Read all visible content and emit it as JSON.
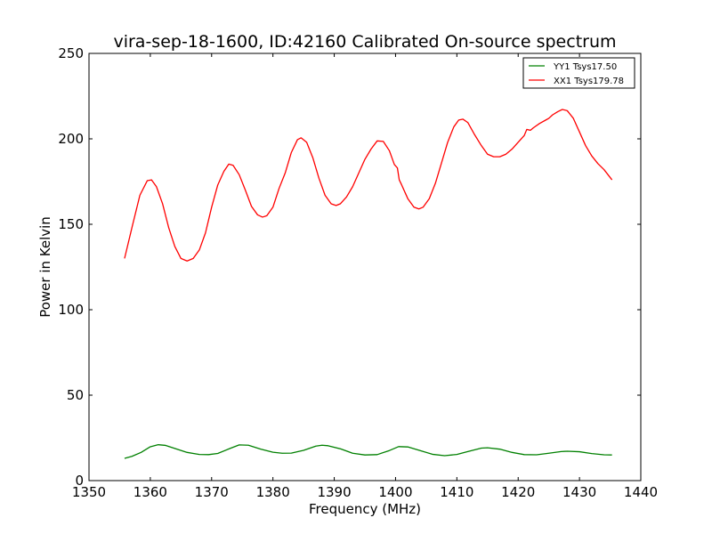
{
  "chart_data": {
    "type": "line",
    "title": "vira-sep-18-1600, ID:42160 Calibrated On-source spectrum",
    "xlabel": "Frequency (MHz)",
    "ylabel": "Power in Kelvin",
    "xlim": [
      1350,
      1440
    ],
    "ylim": [
      0,
      250
    ],
    "xticks": [
      1350,
      1360,
      1370,
      1380,
      1390,
      1400,
      1410,
      1420,
      1430,
      1440
    ],
    "yticks": [
      0,
      50,
      100,
      150,
      200,
      250
    ],
    "grid": false,
    "legend_position": "top-right",
    "series": [
      {
        "name": "YY1 Tsys17.50",
        "color": "#008000",
        "points": [
          [
            1355.8,
            13.0
          ],
          [
            1357,
            14.2
          ],
          [
            1358.5,
            16.5
          ],
          [
            1360,
            19.8
          ],
          [
            1361.3,
            21.0
          ],
          [
            1362.5,
            20.6
          ],
          [
            1364,
            18.8
          ],
          [
            1366,
            16.5
          ],
          [
            1368,
            15.3
          ],
          [
            1369.5,
            15.2
          ],
          [
            1371,
            15.9
          ],
          [
            1373,
            18.8
          ],
          [
            1374.5,
            20.9
          ],
          [
            1376,
            20.7
          ],
          [
            1378,
            18.4
          ],
          [
            1380,
            16.6
          ],
          [
            1381.5,
            16.0
          ],
          [
            1383,
            16.1
          ],
          [
            1385,
            17.7
          ],
          [
            1387,
            20.2
          ],
          [
            1388,
            20.7
          ],
          [
            1389,
            20.4
          ],
          [
            1391,
            18.6
          ],
          [
            1393,
            16.0
          ],
          [
            1395,
            15.0
          ],
          [
            1397,
            15.2
          ],
          [
            1399,
            17.6
          ],
          [
            1400.5,
            19.9
          ],
          [
            1402,
            19.7
          ],
          [
            1404,
            17.6
          ],
          [
            1406,
            15.4
          ],
          [
            1408,
            14.6
          ],
          [
            1410,
            15.3
          ],
          [
            1412,
            17.2
          ],
          [
            1414,
            19.0
          ],
          [
            1415,
            19.2
          ],
          [
            1417,
            18.4
          ],
          [
            1419,
            16.5
          ],
          [
            1421,
            15.2
          ],
          [
            1423,
            15.1
          ],
          [
            1425,
            16.0
          ],
          [
            1427,
            17.0
          ],
          [
            1428,
            17.2
          ],
          [
            1430,
            16.9
          ],
          [
            1432,
            15.8
          ],
          [
            1434,
            15.1
          ],
          [
            1435.3,
            15.0
          ]
        ]
      },
      {
        "name": "XX1 Tsys179.78",
        "color": "#ff0000",
        "points": [
          [
            1355.8,
            130
          ],
          [
            1357,
            148
          ],
          [
            1358.3,
            167
          ],
          [
            1359.5,
            175.5
          ],
          [
            1360.2,
            176
          ],
          [
            1361,
            172
          ],
          [
            1362,
            162
          ],
          [
            1363,
            148
          ],
          [
            1364,
            137
          ],
          [
            1365,
            130
          ],
          [
            1366,
            128.5
          ],
          [
            1367,
            130
          ],
          [
            1368,
            135
          ],
          [
            1369,
            145
          ],
          [
            1370,
            160
          ],
          [
            1371,
            173
          ],
          [
            1372,
            181
          ],
          [
            1372.8,
            185.2
          ],
          [
            1373.5,
            184.5
          ],
          [
            1374.5,
            179
          ],
          [
            1375.5,
            170
          ],
          [
            1376.5,
            160.5
          ],
          [
            1377.5,
            155.5
          ],
          [
            1378.3,
            154.2
          ],
          [
            1379,
            155
          ],
          [
            1380,
            160
          ],
          [
            1381,
            171
          ],
          [
            1382,
            180
          ],
          [
            1383,
            192
          ],
          [
            1384,
            199.5
          ],
          [
            1384.6,
            200.6
          ],
          [
            1385.5,
            198
          ],
          [
            1386.5,
            189
          ],
          [
            1387.5,
            177
          ],
          [
            1388.5,
            167
          ],
          [
            1389.5,
            162
          ],
          [
            1390.3,
            161
          ],
          [
            1391,
            162
          ],
          [
            1392,
            166
          ],
          [
            1393,
            172
          ],
          [
            1394,
            180
          ],
          [
            1395,
            188
          ],
          [
            1396,
            194
          ],
          [
            1397,
            198.8
          ],
          [
            1398,
            198.5
          ],
          [
            1399,
            193
          ],
          [
            1399.8,
            185
          ],
          [
            1400.3,
            183
          ],
          [
            1400.6,
            176
          ],
          [
            1401,
            173
          ],
          [
            1402,
            165
          ],
          [
            1403,
            160
          ],
          [
            1403.8,
            159
          ],
          [
            1404.5,
            160
          ],
          [
            1405.5,
            165
          ],
          [
            1406.5,
            174
          ],
          [
            1407.5,
            186
          ],
          [
            1408.5,
            198
          ],
          [
            1409.5,
            207
          ],
          [
            1410.3,
            211
          ],
          [
            1411,
            211.5
          ],
          [
            1411.8,
            209.5
          ],
          [
            1412.8,
            203
          ],
          [
            1414,
            196
          ],
          [
            1415,
            191
          ],
          [
            1416,
            189.5
          ],
          [
            1417,
            189.5
          ],
          [
            1418,
            191
          ],
          [
            1419,
            194
          ],
          [
            1420,
            198
          ],
          [
            1421,
            202
          ],
          [
            1421.4,
            205.5
          ],
          [
            1422,
            205
          ],
          [
            1422.5,
            206.5
          ],
          [
            1423.5,
            209
          ],
          [
            1424.5,
            211
          ],
          [
            1425,
            212
          ],
          [
            1425.6,
            214
          ],
          [
            1426.5,
            216
          ],
          [
            1427.2,
            217.2
          ],
          [
            1428,
            216.5
          ],
          [
            1429,
            212
          ],
          [
            1430,
            204
          ],
          [
            1431,
            196
          ],
          [
            1432,
            190
          ],
          [
            1433,
            185.5
          ],
          [
            1434,
            182
          ],
          [
            1435.3,
            176
          ]
        ]
      }
    ]
  }
}
